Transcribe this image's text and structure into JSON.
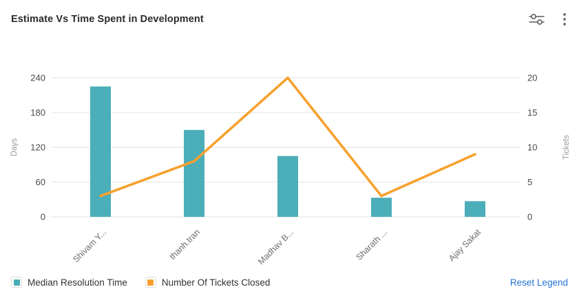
{
  "header": {
    "title": "Estimate Vs Time Spent in Development",
    "actions": [
      {
        "name": "filter-sliders-icon"
      },
      {
        "name": "kebab-menu-icon"
      }
    ]
  },
  "chart_data": {
    "type": "combo",
    "categories": [
      "Shivam Y...",
      "thanh.tran",
      "Madhav B...",
      "Sharath ...",
      "Ajay Sakat"
    ],
    "series": [
      {
        "name": "Median Resolution Time",
        "type": "bar",
        "axis": "left",
        "color": "#4BAEB8",
        "values": [
          225,
          150,
          105,
          33,
          27
        ]
      },
      {
        "name": "Number Of Tickets Closed",
        "type": "line",
        "axis": "right",
        "color": "#F7A12E",
        "values": [
          3,
          8,
          20,
          3,
          9
        ]
      }
    ],
    "left_axis": {
      "label": "Days",
      "min": 0,
      "max": 240,
      "ticks": [
        0,
        60,
        120,
        180,
        240
      ]
    },
    "right_axis": {
      "label": "Tickets",
      "min": 0,
      "max": 20,
      "ticks": [
        0,
        5,
        10,
        15,
        20
      ]
    },
    "grid": "horizontal-only",
    "legend_position": "bottom-left"
  },
  "legend": {
    "items": [
      {
        "label": "Median Resolution Time",
        "color": "#4BAEB8"
      },
      {
        "label": "Number Of Tickets Closed",
        "color": "#F7A12E"
      }
    ],
    "reset_label": "Reset Legend"
  },
  "colors": {
    "title_text": "#2B2B2B",
    "tick_text": "#4A4A4A",
    "category_text": "#6E6E6E",
    "axis_title_text": "#9A9A9A",
    "grid": "#ECECEC",
    "icon": "#5A5A5A",
    "link_blue": "#2273D6",
    "background": "#FFFFFF"
  }
}
